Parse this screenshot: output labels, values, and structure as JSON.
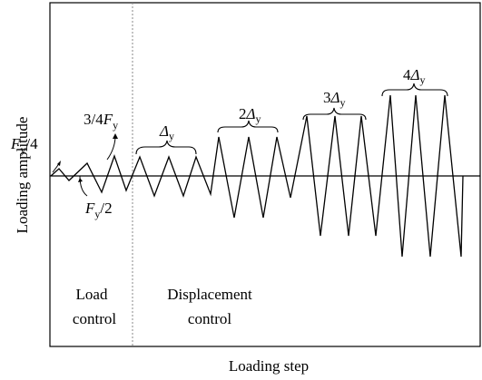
{
  "axes": {
    "x_label": "Loading step",
    "y_label": "Loading amplitude"
  },
  "regions": {
    "load": {
      "line1": "Load",
      "line2": "control"
    },
    "displacement": {
      "line1": "Displacement",
      "line2": "control"
    }
  },
  "force_labels": {
    "f1": {
      "main": "F",
      "sub": "y",
      "suffix": "/4"
    },
    "f2": {
      "main": "F",
      "sub": "y",
      "suffix": "/2"
    },
    "f3": {
      "prefix": "3/4",
      "main": "F",
      "sub": "y"
    }
  },
  "displacement_labels": {
    "d1": {
      "prefix": "",
      "main": "Δ",
      "sub": "y"
    },
    "d2": {
      "prefix": "2",
      "main": "Δ",
      "sub": "y"
    },
    "d3": {
      "prefix": "3",
      "main": "Δ",
      "sub": "y"
    },
    "d4": {
      "prefix": "4",
      "main": "Δ",
      "sub": "y"
    }
  },
  "protocol": {
    "load_control_levels": [
      "Fy/4",
      "Fy/2",
      "3/4Fy"
    ],
    "displacement_levels": [
      "Δy",
      "2Δy",
      "3Δy",
      "4Δy"
    ],
    "cycles_per_displacement_level": 3
  }
}
